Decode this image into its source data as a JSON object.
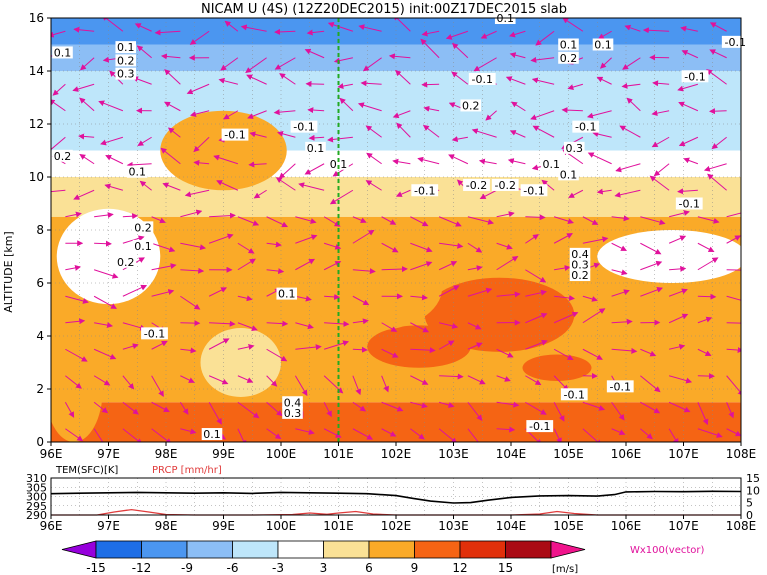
{
  "chart_data": [
    {
      "type": "heatmap",
      "title": "NICAM U (4S) (12Z20DEC2015) init:00Z17DEC2015 slab",
      "ylabel": "ALTITUDE [km]",
      "xlabel": "",
      "x_ticks": [
        "96E",
        "97E",
        "98E",
        "99E",
        "100E",
        "101E",
        "102E",
        "103E",
        "104E",
        "105E",
        "106E",
        "107E",
        "108E"
      ],
      "y_ticks": [
        "0",
        "2",
        "4",
        "6",
        "8",
        "10",
        "12",
        "14",
        "16"
      ],
      "xlim": [
        96,
        108
      ],
      "ylim": [
        0,
        16
      ],
      "marker_x": 101,
      "levels": [
        -15,
        -12,
        -9,
        -6,
        -3,
        3,
        6,
        9,
        12,
        15
      ],
      "level_labels": [
        "-15",
        "-12",
        "-9",
        "-6",
        "-3",
        "3",
        "6",
        "9",
        "12",
        "15"
      ],
      "colors": [
        "#9600dc",
        "#1e6ee6",
        "#4b96f0",
        "#8cbef5",
        "#bee6fa",
        "#ffffff",
        "#fae196",
        "#faaa28",
        "#f56414",
        "#e1300a",
        "#aa0a14",
        "#f0148c"
      ],
      "colorbar_unit": "[m/s]",
      "vector_label": "Wx100(vector)",
      "vector_color": "#e0119c",
      "grid": true,
      "layers": [
        {
          "ymin": 0,
          "ymax": 1.5,
          "level": 3
        },
        {
          "ymin": 1.5,
          "ymax": 8.5,
          "level": 2
        },
        {
          "ymin": 8.5,
          "ymax": 10,
          "level": 1
        },
        {
          "ymin": 10,
          "ymax": 11,
          "level": 0
        },
        {
          "ymin": 11,
          "ymax": 14,
          "level": -1
        },
        {
          "ymin": 14,
          "ymax": 15,
          "level": -2
        },
        {
          "ymin": 15,
          "ymax": 16,
          "level": -3
        }
      ],
      "patches": [
        {
          "x": 103.8,
          "y": 4.8,
          "rx": 1.3,
          "ry": 1.4,
          "level": 3
        },
        {
          "x": 102.4,
          "y": 3.6,
          "rx": 0.9,
          "ry": 0.8,
          "level": 3
        },
        {
          "x": 104.8,
          "y": 2.8,
          "rx": 0.6,
          "ry": 0.5,
          "level": 3
        },
        {
          "x": 101.6,
          "y": 5.8,
          "rx": 1.2,
          "ry": 1.6,
          "level": 2
        },
        {
          "x": 99.0,
          "y": 11.0,
          "rx": 1.1,
          "ry": 1.5,
          "level": 2
        },
        {
          "x": 106.6,
          "y": 3.5,
          "rx": 1.1,
          "ry": 1.2,
          "level": 2
        },
        {
          "x": 106.8,
          "y": 7.0,
          "rx": 1.3,
          "ry": 1.0,
          "level": 0
        },
        {
          "x": 97.0,
          "y": 7.0,
          "rx": 0.9,
          "ry": 1.8,
          "level": 0
        },
        {
          "x": 96.4,
          "y": 2.0,
          "rx": 0.5,
          "ry": 2.0,
          "level": 2
        },
        {
          "x": 99.3,
          "y": 3.0,
          "rx": 0.7,
          "ry": 1.3,
          "level": 1
        }
      ],
      "contour_labels": [
        {
          "x": 100.1,
          "y": 5.6,
          "text": "0.1"
        },
        {
          "x": 100.2,
          "y": 1.5,
          "text": "0.4"
        },
        {
          "x": 100.2,
          "y": 1.1,
          "text": "0.3"
        },
        {
          "x": 105.2,
          "y": 7.1,
          "text": "0.4"
        },
        {
          "x": 105.2,
          "y": 6.7,
          "text": "0.3"
        },
        {
          "x": 105.2,
          "y": 6.3,
          "text": "0.2"
        },
        {
          "x": 105.0,
          "y": 15.0,
          "text": "0.1"
        },
        {
          "x": 105.0,
          "y": 14.5,
          "text": "0.2"
        },
        {
          "x": 105.1,
          "y": 11.1,
          "text": "0.3"
        },
        {
          "x": 97.3,
          "y": 14.9,
          "text": "0.1"
        },
        {
          "x": 97.3,
          "y": 14.4,
          "text": "0.2"
        },
        {
          "x": 97.3,
          "y": 13.9,
          "text": "0.3"
        },
        {
          "x": 96.2,
          "y": 10.8,
          "text": "0.2"
        },
        {
          "x": 97.6,
          "y": 8.1,
          "text": "0.2"
        },
        {
          "x": 97.6,
          "y": 7.4,
          "text": "0.1"
        },
        {
          "x": 97.3,
          "y": 6.8,
          "text": "0.2"
        },
        {
          "x": 97.5,
          "y": 10.2,
          "text": "0.1"
        },
        {
          "x": 96.2,
          "y": 14.7,
          "text": "0.1"
        },
        {
          "x": 99.2,
          "y": 11.6,
          "text": "-0.1"
        },
        {
          "x": 100.4,
          "y": 11.9,
          "text": "-0.1"
        },
        {
          "x": 100.6,
          "y": 11.1,
          "text": "0.1"
        },
        {
          "x": 101.0,
          "y": 10.5,
          "text": "0.1"
        },
        {
          "x": 102.5,
          "y": 9.5,
          "text": "-0.1"
        },
        {
          "x": 103.4,
          "y": 9.7,
          "text": "-0.2"
        },
        {
          "x": 103.9,
          "y": 9.7,
          "text": "-0.2"
        },
        {
          "x": 104.4,
          "y": 9.5,
          "text": "-0.1"
        },
        {
          "x": 103.5,
          "y": 13.7,
          "text": "-0.1"
        },
        {
          "x": 103.3,
          "y": 12.7,
          "text": "0.2"
        },
        {
          "x": 103.9,
          "y": 16.0,
          "text": "0.1"
        },
        {
          "x": 104.7,
          "y": 10.5,
          "text": "0.1"
        },
        {
          "x": 105.3,
          "y": 11.9,
          "text": "-0.1"
        },
        {
          "x": 105.6,
          "y": 15.0,
          "text": "0.1"
        },
        {
          "x": 107.9,
          "y": 15.1,
          "text": "-0.1"
        },
        {
          "x": 107.2,
          "y": 13.8,
          "text": "-0.1"
        },
        {
          "x": 107.1,
          "y": 9.0,
          "text": "-0.1"
        },
        {
          "x": 97.8,
          "y": 4.1,
          "text": "-0.1"
        },
        {
          "x": 98.8,
          "y": 0.3,
          "text": "0.1"
        },
        {
          "x": 104.5,
          "y": 0.6,
          "text": "-0.1"
        },
        {
          "x": 105.1,
          "y": 1.8,
          "text": "-0.1"
        },
        {
          "x": 105.9,
          "y": 2.1,
          "text": "-0.1"
        },
        {
          "x": 105.0,
          "y": 10.1,
          "text": "0.1"
        }
      ]
    },
    {
      "type": "line",
      "left_label": "TEM(SFC)[K]",
      "right_label": "PRCP [mm/hr]",
      "left_ticks": [
        "310",
        "305",
        "300",
        "295",
        "290"
      ],
      "right_ticks": [
        "15",
        "10",
        "5",
        "0"
      ],
      "left_ylim": [
        290,
        310
      ],
      "right_ylim": [
        0,
        15
      ],
      "xlim": [
        96,
        108
      ],
      "x_ticks": [
        "96E",
        "97E",
        "98E",
        "99E",
        "100E",
        "101E",
        "102E",
        "103E",
        "104E",
        "105E",
        "106E",
        "107E",
        "108E"
      ],
      "series": [
        {
          "color": "#000000",
          "axis": "left",
          "x": [
            96,
            96.5,
            97,
            97.5,
            98,
            98.5,
            99,
            99.5,
            100,
            100.5,
            101,
            101.5,
            102,
            102.3,
            102.6,
            103,
            103.3,
            103.6,
            104,
            104.5,
            105,
            105.5,
            105.8,
            106,
            106.5,
            107,
            107.5,
            108
          ],
          "values": [
            301.5,
            301.8,
            302.0,
            302.2,
            302.0,
            301.8,
            302.0,
            301.7,
            302.2,
            302.0,
            301.8,
            301.5,
            300.5,
            299.0,
            297.5,
            296.5,
            296.7,
            298.0,
            299.5,
            300.3,
            300.5,
            300.2,
            301.0,
            302.5,
            302.7,
            302.6,
            302.8,
            302.7
          ]
        },
        {
          "color": "#e03c3c",
          "axis": "right",
          "x": [
            96,
            96.8,
            97.1,
            97.4,
            97.7,
            98.0,
            98.5,
            99.5,
            100.2,
            100.5,
            100.8,
            101.0,
            101.3,
            101.6,
            102,
            103,
            104,
            104.5,
            104.8,
            105.1,
            105.5,
            106,
            107,
            108
          ],
          "values": [
            0,
            0,
            1.2,
            2.2,
            1.2,
            0.2,
            0,
            0,
            0.2,
            0.8,
            0.3,
            0.8,
            1.4,
            0.4,
            0,
            0,
            0,
            0.4,
            1.4,
            0.6,
            0,
            0,
            0,
            0
          ]
        }
      ]
    }
  ]
}
